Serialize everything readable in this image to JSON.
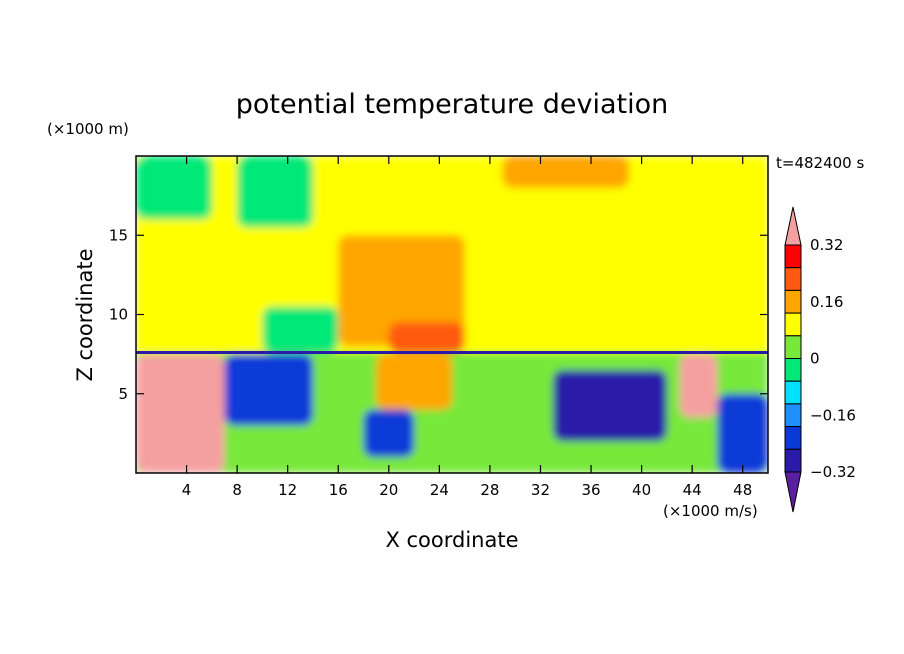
{
  "chart_data": {
    "type": "heatmap",
    "title": "potential temperature deviation",
    "xlabel": "X coordinate",
    "ylabel": "Z coordinate",
    "x_unit": "(×1000 m/s)",
    "y_unit": "(×1000 m)",
    "time_label": "t=482400 s",
    "xlim": [
      0,
      50
    ],
    "ylim": [
      0,
      20
    ],
    "x_ticks": [
      4,
      8,
      12,
      16,
      20,
      24,
      28,
      32,
      36,
      40,
      44,
      48
    ],
    "y_ticks": [
      5,
      10,
      15
    ],
    "colorbar": {
      "labels": [
        "0.32",
        "0.16",
        "0",
        "−0.16",
        "−0.32"
      ],
      "label_values": [
        0.32,
        0.16,
        0,
        -0.16,
        -0.32
      ],
      "levels": [
        -0.4,
        -0.32,
        -0.24,
        -0.16,
        -0.08,
        0,
        0.08,
        0.16,
        0.24,
        0.32,
        0.4
      ],
      "colors": [
        "#5a1fa0",
        "#2a1aa8",
        "#0a3ad8",
        "#1e90ff",
        "#00e0ff",
        "#00e878",
        "#78e83a",
        "#ffff00",
        "#ffa500",
        "#ff5a10",
        "#ff0000",
        "#f5a0a0"
      ]
    },
    "regions": [
      {
        "value": 0.08,
        "x": [
          0,
          50
        ],
        "z": [
          7.6,
          20
        ]
      },
      {
        "value": -0.08,
        "x": [
          0,
          6
        ],
        "z": [
          16,
          20
        ]
      },
      {
        "value": -0.08,
        "x": [
          8,
          14
        ],
        "z": [
          15.5,
          20
        ]
      },
      {
        "value": 0.16,
        "x": [
          29,
          39
        ],
        "z": [
          18,
          20
        ]
      },
      {
        "value": 0.16,
        "x": [
          16,
          26
        ],
        "z": [
          8,
          15
        ]
      },
      {
        "value": 0.24,
        "x": [
          20,
          26
        ],
        "z": [
          7.6,
          9.5
        ]
      },
      {
        "value": -0.08,
        "x": [
          10,
          16
        ],
        "z": [
          7.6,
          10.5
        ]
      },
      {
        "value": 0.0,
        "x": [
          0,
          50
        ],
        "z": [
          0,
          7.6
        ]
      },
      {
        "value": 0.4,
        "x": [
          0,
          7
        ],
        "z": [
          0,
          7.5
        ]
      },
      {
        "value": -0.32,
        "x": [
          7,
          14
        ],
        "z": [
          3,
          7.5
        ]
      },
      {
        "value": -0.32,
        "x": [
          18,
          22
        ],
        "z": [
          1,
          4
        ]
      },
      {
        "value": 0.16,
        "x": [
          19,
          25
        ],
        "z": [
          4,
          7.5
        ]
      },
      {
        "value": 0.0,
        "x": [
          25,
          32
        ],
        "z": [
          1,
          6
        ]
      },
      {
        "value": -0.4,
        "x": [
          33,
          42
        ],
        "z": [
          2,
          6.5
        ]
      },
      {
        "value": 0.4,
        "x": [
          43,
          46
        ],
        "z": [
          3.5,
          7.5
        ]
      },
      {
        "value": -0.32,
        "x": [
          46,
          50
        ],
        "z": [
          0,
          5
        ]
      }
    ]
  }
}
